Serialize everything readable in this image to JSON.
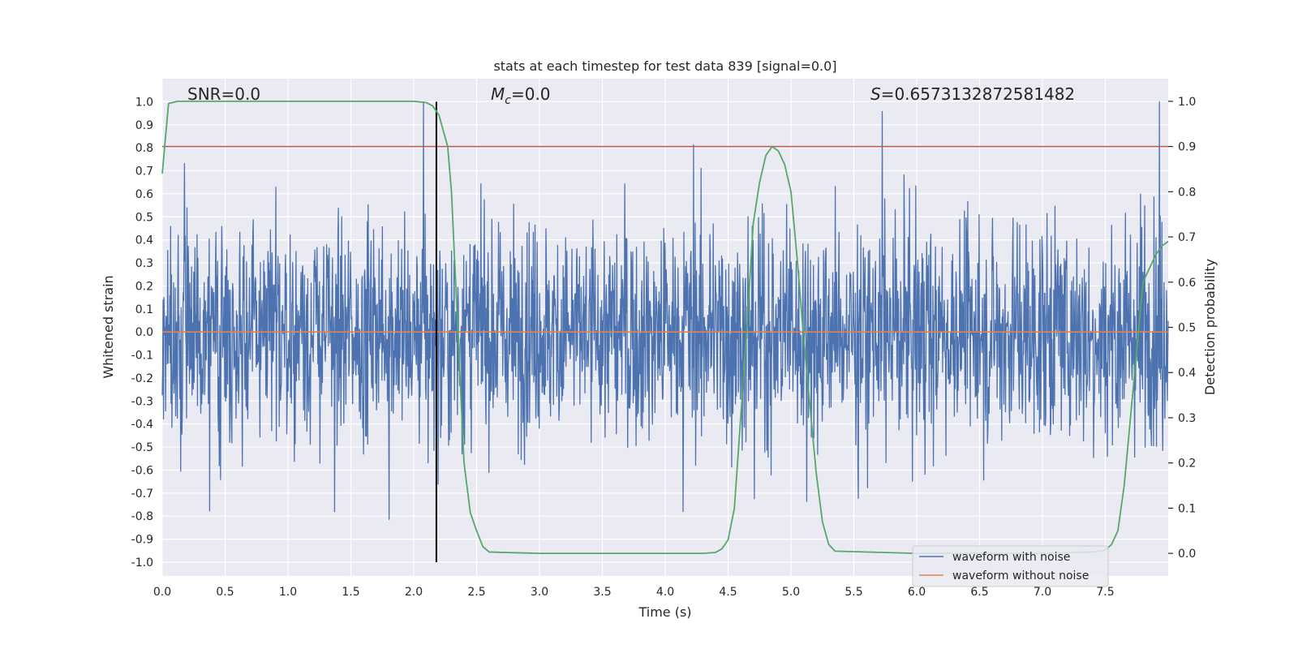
{
  "chart_data": {
    "type": "line",
    "title": "stats at each timestep for test data 839 [signal=0.0]",
    "xlabel": "Time (s)",
    "ylabel": "Whitened strain",
    "ylabel_right": "Detection probability",
    "xlim": [
      0.0,
      8.0
    ],
    "ylim": [
      -1.06,
      1.1
    ],
    "ylim_right": [
      -0.05,
      1.05
    ],
    "x_ticks": [
      0.0,
      0.5,
      1.0,
      1.5,
      2.0,
      2.5,
      3.0,
      3.5,
      4.0,
      4.5,
      5.0,
      5.5,
      6.0,
      6.5,
      7.0,
      7.5
    ],
    "x_tick_labels": [
      "0.0",
      "0.5",
      "1.0",
      "1.5",
      "2.0",
      "2.5",
      "3.0",
      "3.5",
      "4.0",
      "4.5",
      "5.0",
      "5.5",
      "6.0",
      "6.5",
      "7.0",
      "7.5"
    ],
    "y_ticks": [
      1.0,
      0.9,
      0.8,
      0.7,
      0.6,
      0.5,
      0.4,
      0.3,
      0.2,
      0.1,
      0.0,
      -0.1,
      -0.2,
      -0.3,
      -0.4,
      -0.5,
      -0.6,
      -0.7,
      -0.8,
      -0.9,
      -1.0
    ],
    "y_tick_labels": [
      "1.0",
      "0.9",
      "0.8",
      "0.7",
      "0.6",
      "0.5",
      "0.4",
      "0.3",
      "0.2",
      "0.1",
      "0.0",
      "-0.1",
      "-0.2",
      "-0.3",
      "-0.4",
      "-0.5",
      "-0.6",
      "-0.7",
      "-0.8",
      "-0.9",
      "-1.0"
    ],
    "y_right_ticks": [
      1.0,
      0.9,
      0.8,
      0.7,
      0.6,
      0.5,
      0.4,
      0.3,
      0.2,
      0.1,
      0.0
    ],
    "y_right_tick_labels": [
      "1.0",
      "0.9",
      "0.8",
      "0.7",
      "0.6",
      "0.5",
      "0.4",
      "0.3",
      "0.2",
      "0.1",
      "0.0"
    ],
    "annotations": {
      "snr": "SNR=0.0",
      "mc_symbol": "M",
      "mc_subscript": "c",
      "mc_value": "=0.0",
      "s_symbol": "S",
      "s_value": "=0.6573132872581482"
    },
    "threshold": {
      "value": 0.9,
      "axis": "right",
      "color": "#c44e52"
    },
    "marker_line": {
      "x": 2.18,
      "y_from": -1.0,
      "y_to": 1.0,
      "color": "#000000"
    },
    "series": [
      {
        "name": "waveform with noise",
        "color": "#4c72b0",
        "axis": "left",
        "description": "dense whitened-strain noise, roughly +/-0.5 envelope with peaks near +/-1.0",
        "x_range": [
          0.0,
          8.0
        ],
        "peak_abs": 1.0,
        "typical_envelope": 0.5
      },
      {
        "name": "waveform without noise",
        "color": "#dd8452",
        "axis": "left",
        "x": [
          0.0,
          8.0
        ],
        "y": [
          0.0,
          0.0
        ]
      },
      {
        "name": "detection probability",
        "color": "#55a868",
        "axis": "right",
        "x": [
          0.0,
          0.05,
          0.12,
          0.3,
          1.0,
          1.5,
          2.0,
          2.1,
          2.15,
          2.2,
          2.27,
          2.3,
          2.35,
          2.4,
          2.45,
          2.5,
          2.55,
          2.6,
          3.0,
          4.0,
          4.3,
          4.4,
          4.45,
          4.5,
          4.55,
          4.6,
          4.65,
          4.7,
          4.75,
          4.8,
          4.85,
          4.9,
          4.95,
          5.0,
          5.05,
          5.1,
          5.15,
          5.2,
          5.25,
          5.3,
          5.35,
          6.0,
          7.0,
          7.4,
          7.5,
          7.55,
          7.6,
          7.65,
          7.7,
          7.75,
          7.8,
          7.85,
          7.9,
          7.95,
          8.0
        ],
        "y": [
          0.84,
          0.995,
          1.0,
          1.0,
          1.0,
          1.0,
          1.0,
          0.997,
          0.99,
          0.97,
          0.9,
          0.8,
          0.5,
          0.2,
          0.09,
          0.05,
          0.015,
          0.003,
          0.0,
          0.0,
          0.0,
          0.002,
          0.01,
          0.03,
          0.1,
          0.3,
          0.5,
          0.73,
          0.82,
          0.88,
          0.9,
          0.89,
          0.86,
          0.8,
          0.65,
          0.48,
          0.33,
          0.18,
          0.07,
          0.02,
          0.005,
          0.0,
          0.0,
          0.003,
          0.007,
          0.02,
          0.05,
          0.15,
          0.3,
          0.45,
          0.6,
          0.63,
          0.66,
          0.68,
          0.69
        ]
      }
    ],
    "legend": {
      "position": "lower-right",
      "entries": [
        {
          "label": "waveform with noise",
          "color": "#4c72b0"
        },
        {
          "label": "waveform without noise",
          "color": "#dd8452"
        }
      ]
    },
    "grid": true,
    "style": {
      "plot_bg": "#eaeaf2",
      "grid_color": "#ffffff"
    }
  }
}
